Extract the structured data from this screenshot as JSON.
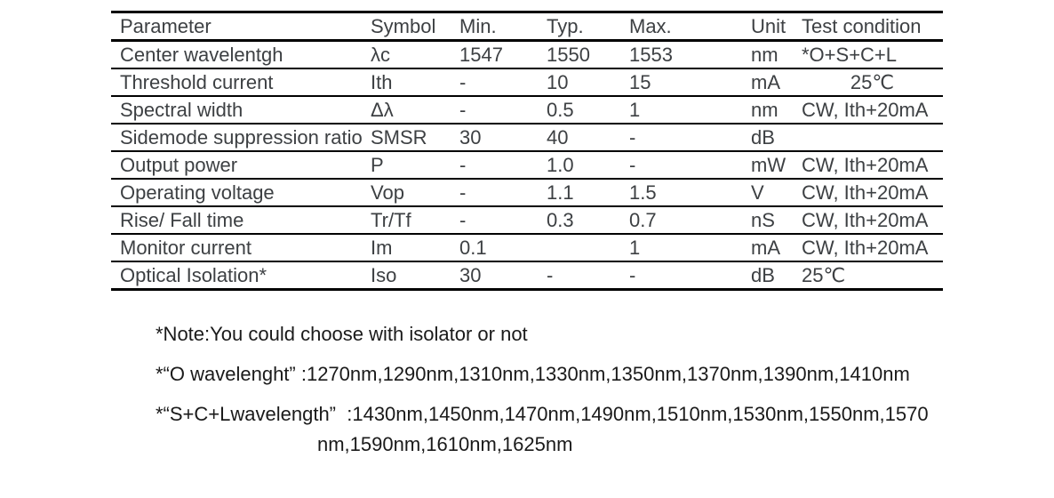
{
  "colors": {
    "background": "#ffffff",
    "table_border": "#000000",
    "table_text": "#3d4043",
    "note_text": "#1a1a1a"
  },
  "table": {
    "columns": [
      "Parameter",
      "Symbol",
      "Min.",
      "Typ.",
      "Max.",
      "Unit",
      "Test condition"
    ],
    "rows": [
      {
        "cells": [
          "Center wavelentgh",
          "λc",
          "1547",
          "1550",
          "1553",
          "nm",
          "*O+S+C+L"
        ]
      },
      {
        "cells": [
          "Threshold current",
          "Ith",
          "-",
          "10",
          "15",
          "mA",
          "25℃"
        ],
        "test_condition_align": "center"
      },
      {
        "cells": [
          "Spectral width",
          "Δλ",
          "-",
          "0.5",
          "1",
          "nm",
          "CW, Ith+20mA"
        ]
      },
      {
        "cells": [
          "Sidemode suppression ratio",
          "SMSR",
          "30",
          "40",
          "-",
          "dB",
          ""
        ]
      },
      {
        "cells": [
          "Output power",
          "P",
          "-",
          "1.0",
          "-",
          "mW",
          "CW, Ith+20mA"
        ]
      },
      {
        "cells": [
          "Operating voltage",
          "Vop",
          "-",
          "1.1",
          "1.5",
          "V",
          "CW, Ith+20mA"
        ]
      },
      {
        "cells": [
          "Rise/ Fall time",
          "Tr/Tf",
          "-",
          "0.3",
          "0.7",
          "nS",
          "CW, Ith+20mA"
        ]
      },
      {
        "cells": [
          "Monitor current",
          "Im",
          "0.1",
          "",
          "1",
          "mA",
          "CW, Ith+20mA"
        ]
      },
      {
        "cells": [
          "Optical Isolation*",
          "Iso",
          "30",
          "-",
          "-",
          "dB",
          "25℃"
        ]
      }
    ]
  },
  "notes": [
    {
      "text": "*Note:You could choose with isolator or not"
    },
    {
      "text": "*“O wavelenght” :1270nm,1290nm,1310nm,1330nm,1350nm,1370nm,1390nm,1410nm"
    },
    {
      "text": "*“S+C+Lwavelength”  :1430nm,1450nm,1470nm,1490nm,1510nm,1530nm,1550nm,1570",
      "continuation": "nm,1590nm,1610nm,1625nm"
    }
  ]
}
